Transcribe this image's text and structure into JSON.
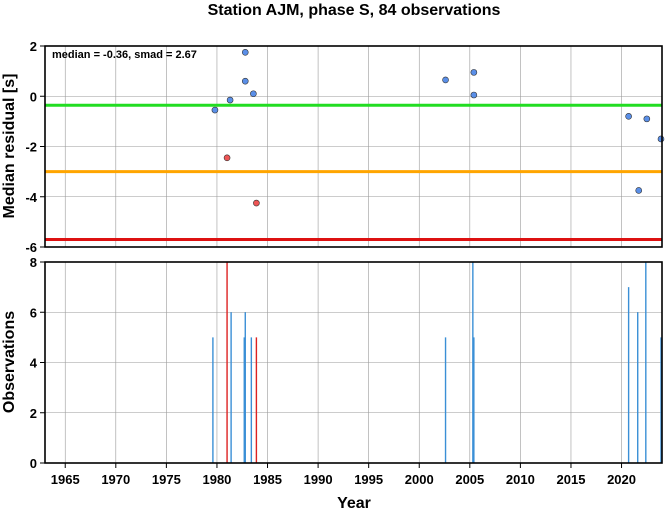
{
  "chart_data": [
    {
      "type": "scatter",
      "title": "Station AJM, phase S, 84 observations",
      "ylabel": "Median residual [s]",
      "annotation": "median = -0.36, smad = 2.67",
      "xlim": [
        1963,
        2024
      ],
      "ylim": [
        -6,
        2
      ],
      "yticks": [
        2,
        0,
        -2,
        -4,
        -6
      ],
      "grid": true,
      "hlines": [
        {
          "y": -0.36,
          "color": "#22dd22"
        },
        {
          "y": -3.0,
          "color": "#ffa500"
        },
        {
          "y": -5.7,
          "color": "#dd1111"
        }
      ],
      "series": [
        {
          "color": "#5a8fe8",
          "points": [
            {
              "x": 1979.8,
              "y": -0.55
            },
            {
              "x": 1981.3,
              "y": -0.15
            },
            {
              "x": 1982.8,
              "y": 1.75
            },
            {
              "x": 1982.8,
              "y": 0.6
            },
            {
              "x": 1983.6,
              "y": 0.1
            },
            {
              "x": 2002.6,
              "y": 0.65
            },
            {
              "x": 2005.4,
              "y": 0.95
            },
            {
              "x": 2005.4,
              "y": 0.05
            },
            {
              "x": 2020.7,
              "y": -0.8
            },
            {
              "x": 2021.7,
              "y": -3.75
            },
            {
              "x": 2022.5,
              "y": -0.9
            },
            {
              "x": 2023.9,
              "y": -1.7
            }
          ]
        },
        {
          "color": "#ee5555",
          "points": [
            {
              "x": 1981.0,
              "y": -2.45
            },
            {
              "x": 1983.9,
              "y": -4.25
            }
          ]
        }
      ]
    },
    {
      "type": "bar",
      "ylabel": "Observations",
      "xlabel": "Year",
      "xlim": [
        1963,
        2024
      ],
      "ylim": [
        0,
        8
      ],
      "yticks": [
        8,
        6,
        4,
        2,
        0
      ],
      "xticks": [
        1965,
        1970,
        1975,
        1980,
        1985,
        1990,
        1995,
        2000,
        2005,
        2010,
        2015,
        2020
      ],
      "grid": true,
      "bars": [
        {
          "x": 1979.6,
          "value": 5,
          "color": "#3a8fd6"
        },
        {
          "x": 1981.0,
          "value": 8,
          "color": "#dd2222"
        },
        {
          "x": 1981.4,
          "value": 6,
          "color": "#3a8fd6"
        },
        {
          "x": 1982.7,
          "value": 5,
          "color": "#3a8fd6"
        },
        {
          "x": 1982.8,
          "value": 6,
          "color": "#3a8fd6"
        },
        {
          "x": 1983.4,
          "value": 5,
          "color": "#3a8fd6"
        },
        {
          "x": 1983.9,
          "value": 5,
          "color": "#dd2222"
        },
        {
          "x": 2002.6,
          "value": 5,
          "color": "#3a8fd6"
        },
        {
          "x": 2005.3,
          "value": 8,
          "color": "#3a8fd6"
        },
        {
          "x": 2005.4,
          "value": 5,
          "color": "#3a8fd6"
        },
        {
          "x": 2020.7,
          "value": 7,
          "color": "#3a8fd6"
        },
        {
          "x": 2021.6,
          "value": 6,
          "color": "#3a8fd6"
        },
        {
          "x": 2022.4,
          "value": 8,
          "color": "#3a8fd6"
        },
        {
          "x": 2023.9,
          "value": 5,
          "color": "#3a8fd6"
        }
      ]
    }
  ]
}
